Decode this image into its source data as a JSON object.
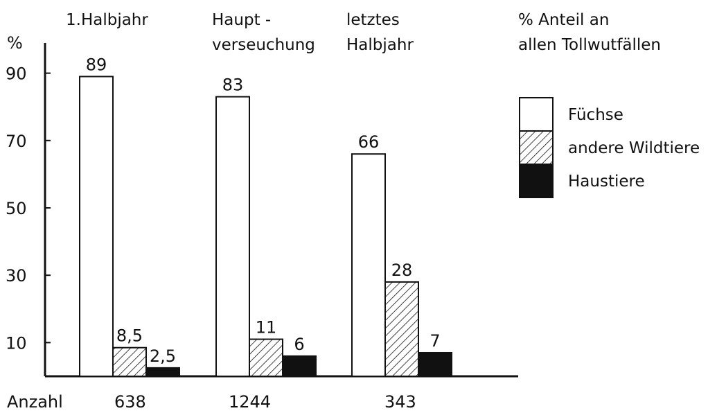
{
  "chart_data": {
    "type": "bar",
    "ylabel": "%",
    "ylim": [
      0,
      95
    ],
    "yticks": [
      10,
      30,
      50,
      70,
      90
    ],
    "grid": false,
    "groups": [
      {
        "label_lines": [
          "1.Halbjahr"
        ],
        "count": "638"
      },
      {
        "label_lines": [
          "Haupt -",
          "verseuchung"
        ],
        "count": "1244"
      },
      {
        "label_lines": [
          "letztes",
          "Halbjahr"
        ],
        "count": "343"
      }
    ],
    "count_label": "Anzahl",
    "series": [
      {
        "name": "Füchse",
        "pattern": "white",
        "values": [
          89,
          83,
          66
        ],
        "value_labels": [
          "89",
          "83",
          "66"
        ]
      },
      {
        "name": "andere Wildtiere",
        "pattern": "hatch",
        "values": [
          8.5,
          11,
          28
        ],
        "value_labels": [
          "8,5",
          "11",
          "28"
        ]
      },
      {
        "name": "Haustiere",
        "pattern": "black",
        "values": [
          2.5,
          6,
          7
        ],
        "value_labels": [
          "2,5",
          "6",
          "7"
        ]
      }
    ],
    "legend": {
      "title_lines": [
        "% Anteil an",
        "allen Tollwutfällen"
      ],
      "placement": "top-right"
    }
  }
}
